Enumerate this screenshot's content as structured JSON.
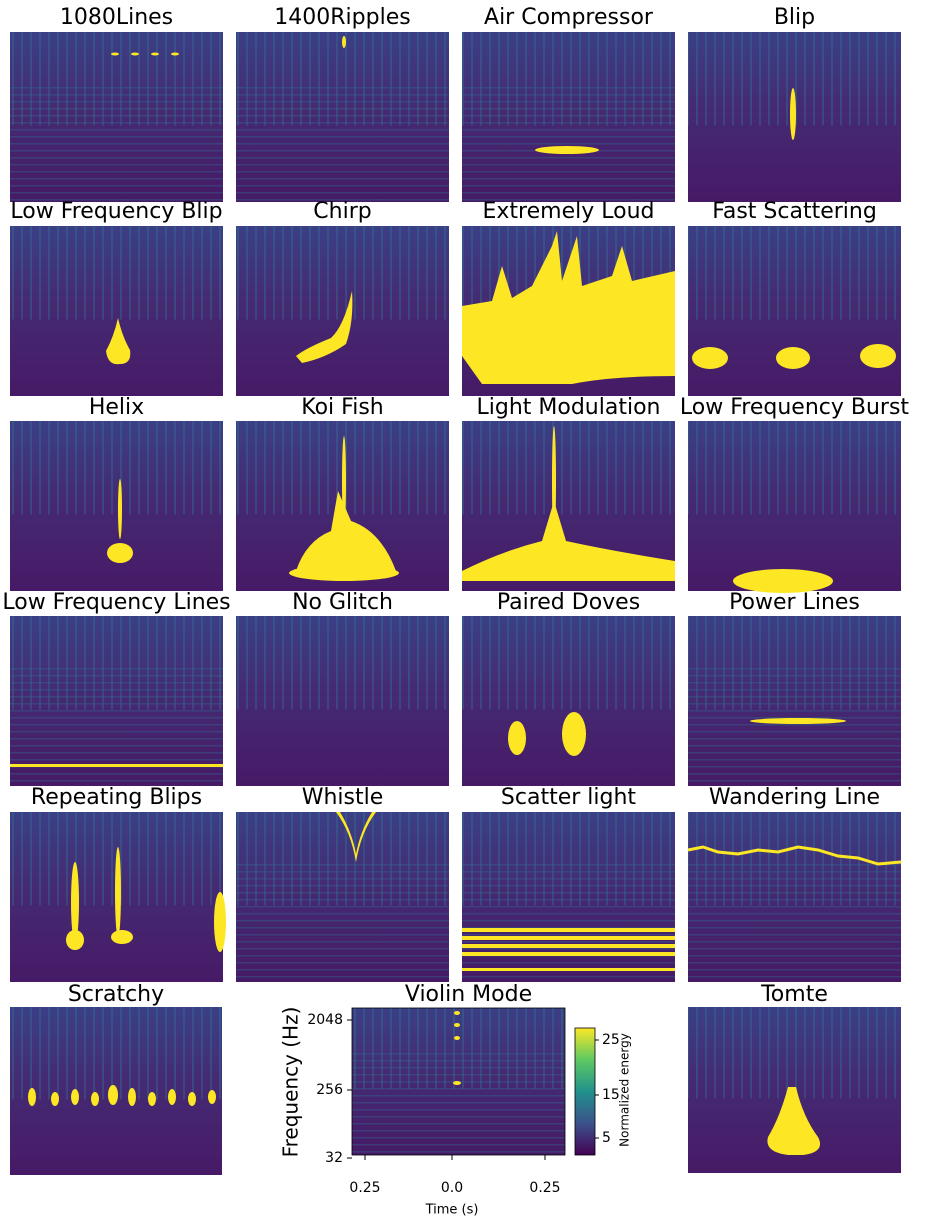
{
  "panels": [
    {
      "title": "1080Lines"
    },
    {
      "title": "1400Ripples"
    },
    {
      "title": "Air Compressor"
    },
    {
      "title": "Blip"
    },
    {
      "title": "Low Frequency Blip"
    },
    {
      "title": "Chirp"
    },
    {
      "title": "Extremely Loud"
    },
    {
      "title": "Fast Scattering"
    },
    {
      "title": "Helix"
    },
    {
      "title": "Koi Fish"
    },
    {
      "title": "Light Modulation"
    },
    {
      "title": "Low Frequency Burst"
    },
    {
      "title": "Low Frequency Lines"
    },
    {
      "title": "No Glitch"
    },
    {
      "title": "Paired Doves"
    },
    {
      "title": "Power Lines"
    },
    {
      "title": "Repeating Blips"
    },
    {
      "title": "Whistle"
    },
    {
      "title": "Scatter light"
    },
    {
      "title": "Wandering Line"
    },
    {
      "title": "Scratchy"
    },
    {
      "title": "Violin Mode"
    },
    {
      "title": "Tomte"
    }
  ],
  "axes": {
    "y_label": "Frequency (Hz)",
    "y_ticks": [
      "2048",
      "256",
      "32"
    ],
    "x_label": "Time (s)",
    "x_ticks": [
      "0.25",
      "0.0",
      "0.25"
    ]
  },
  "colorbar": {
    "label": "Normalized energy",
    "ticks": [
      "25",
      "15",
      "5"
    ]
  }
}
